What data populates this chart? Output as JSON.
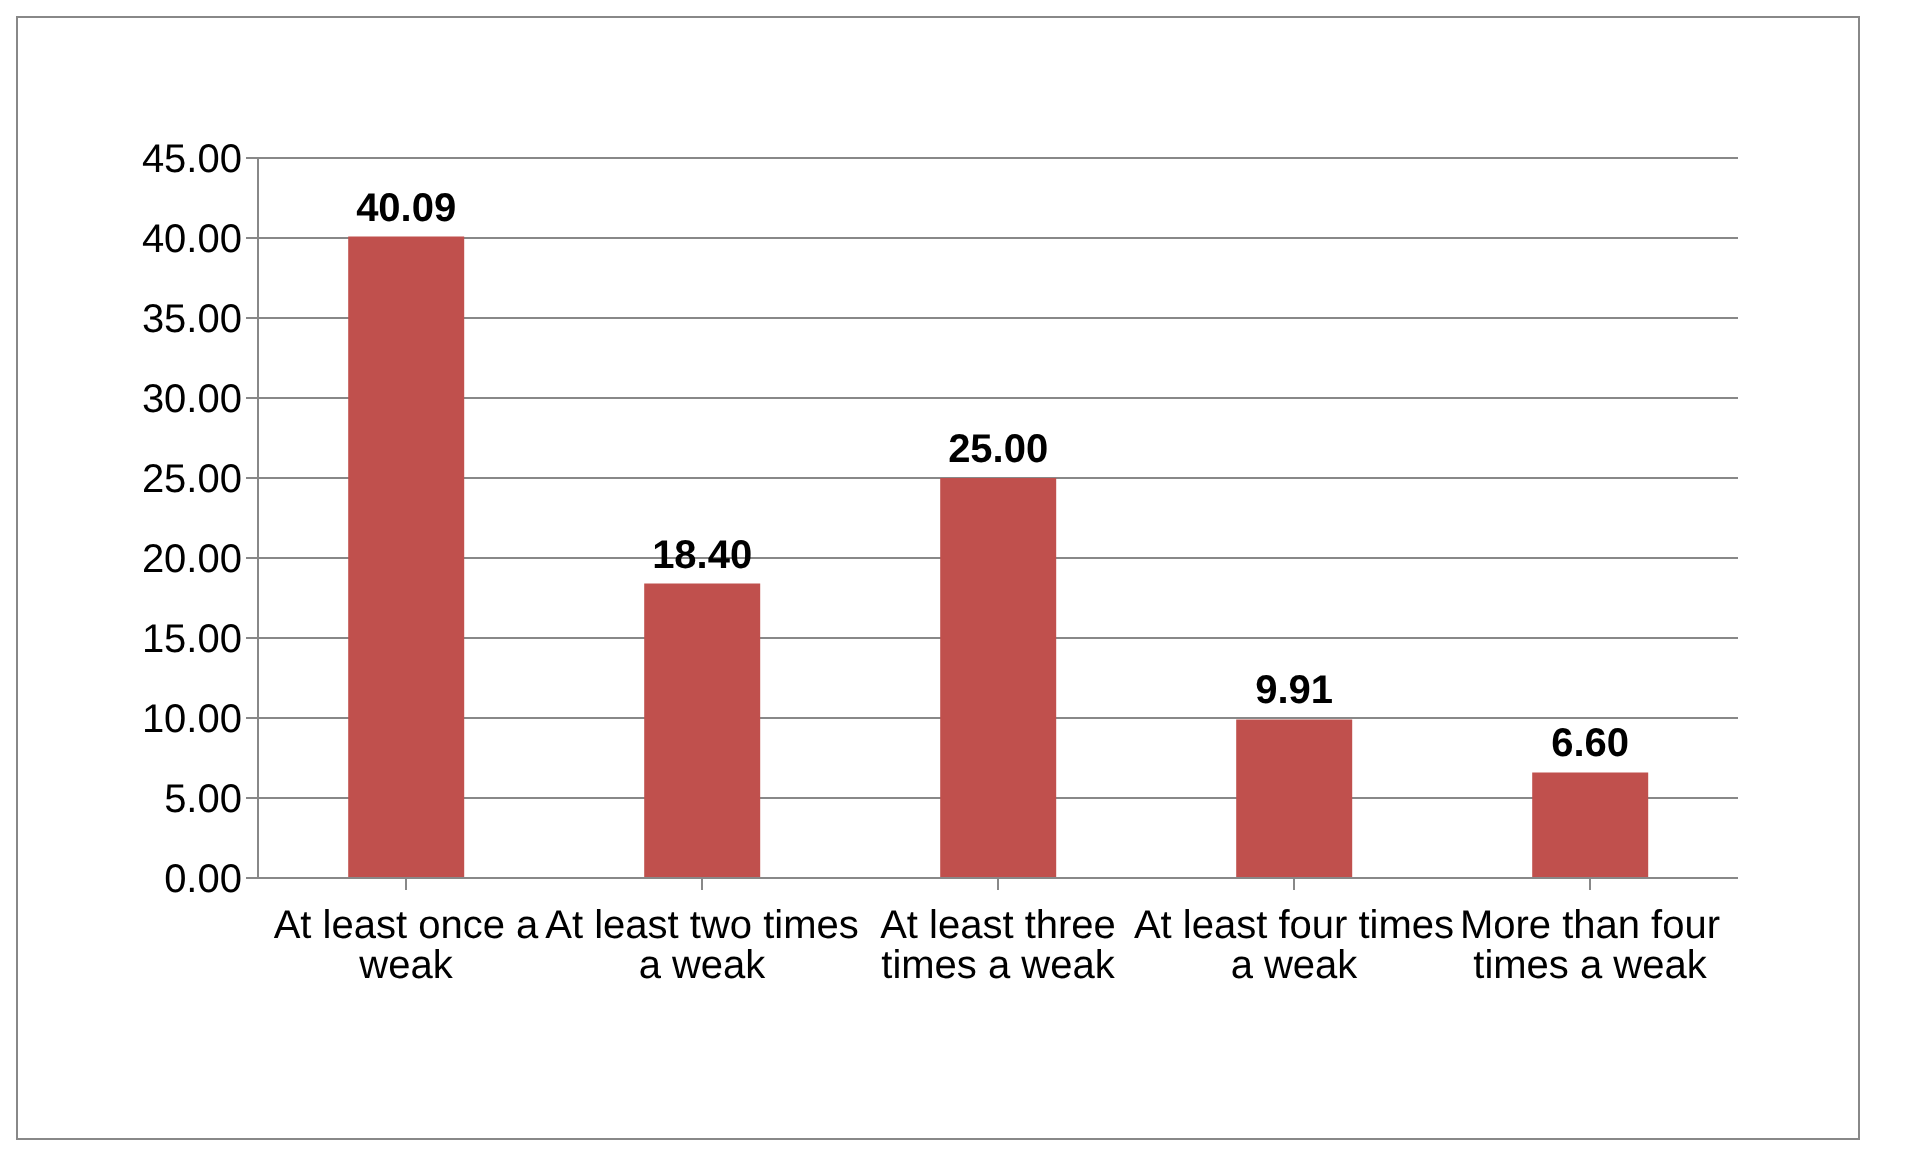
{
  "chart_data": {
    "type": "bar",
    "categories": [
      "At least once a weak",
      "At least two times a weak",
      "At least three times a weak",
      "At least four times a weak",
      "More than four times a weak"
    ],
    "values": [
      40.09,
      18.4,
      25.0,
      9.91,
      6.6
    ],
    "value_labels": [
      "40.09",
      "18.40",
      "25.00",
      "9.91",
      "6.60"
    ],
    "color": "#c0504d",
    "ylim": [
      0,
      45
    ],
    "yticks": [
      {
        "value": 0,
        "label": "0.00"
      },
      {
        "value": 5,
        "label": "5.00"
      },
      {
        "value": 10,
        "label": "10.00"
      },
      {
        "value": 15,
        "label": "15.00"
      },
      {
        "value": 20,
        "label": "20.00"
      },
      {
        "value": 25,
        "label": "25.00"
      },
      {
        "value": 30,
        "label": "30.00"
      },
      {
        "value": 35,
        "label": "35.00"
      },
      {
        "value": 40,
        "label": "40.00"
      },
      {
        "value": 45,
        "label": "45.00"
      }
    ],
    "grid": "y"
  }
}
